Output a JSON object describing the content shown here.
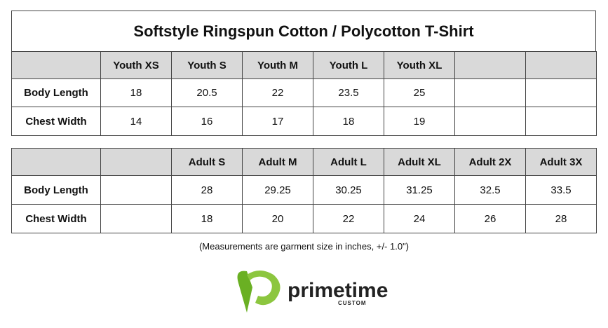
{
  "title": "Softstyle Ringspun Cotton / Polycotton T-Shirt",
  "youth": {
    "headers": [
      "Youth XS",
      "Youth S",
      "Youth M",
      "Youth L",
      "Youth XL"
    ],
    "rows": [
      {
        "label": "Body Length",
        "values": [
          "18",
          "20.5",
          "22",
          "23.5",
          "25"
        ]
      },
      {
        "label": "Chest Width",
        "values": [
          "14",
          "16",
          "17",
          "18",
          "19"
        ]
      }
    ]
  },
  "adult": {
    "headers": [
      "Adult S",
      "Adult M",
      "Adult L",
      "Adult XL",
      "Adult 2X",
      "Adult 3X"
    ],
    "rows": [
      {
        "label": "Body Length",
        "values": [
          "28",
          "29.25",
          "30.25",
          "31.25",
          "32.5",
          "33.5"
        ]
      },
      {
        "label": "Chest Width",
        "values": [
          "18",
          "20",
          "22",
          "24",
          "26",
          "28"
        ]
      }
    ]
  },
  "note": "(Measurements are garment size in inches, +/- 1.0\")",
  "logo": {
    "name": "primetime",
    "sub": "CUSTOM"
  }
}
